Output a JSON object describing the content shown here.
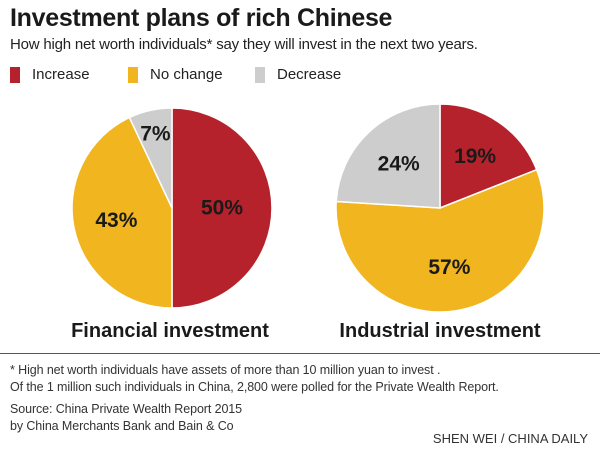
{
  "header": {
    "title": "Investment plans of rich Chinese",
    "subtitle": "How high net worth individuals* say they will invest in the next two years."
  },
  "legend": [
    {
      "label": "Increase",
      "color": "#b5222c"
    },
    {
      "label": "No change",
      "color": "#f0b51f"
    },
    {
      "label": "Decrease",
      "color": "#cdcdcd"
    }
  ],
  "chart_data": [
    {
      "type": "pie",
      "title": "Financial investment",
      "slices": [
        {
          "label": "Increase",
          "value": 50,
          "display": "50%"
        },
        {
          "label": "No change",
          "value": 43,
          "display": "43%"
        },
        {
          "label": "Decrease",
          "value": 7,
          "display": "7%"
        }
      ]
    },
    {
      "type": "pie",
      "title": "Industrial investment",
      "slices": [
        {
          "label": "Increase",
          "value": 19,
          "display": "19%"
        },
        {
          "label": "No change",
          "value": 57,
          "display": "57%"
        },
        {
          "label": "Decrease",
          "value": 24,
          "display": "24%"
        }
      ]
    }
  ],
  "footnotes": {
    "note_line1": "* High net worth individuals have assets of more than 10 million yuan to invest .",
    "note_line2": "Of the 1 million such individuals in China,  2,800 were polled for the Private Wealth Report.",
    "source_line1": "Source: China Private Wealth Report 2015",
    "source_line2": "by China Merchants Bank and Bain & Co",
    "credit": "SHEN WEI / CHINA DAILY"
  }
}
